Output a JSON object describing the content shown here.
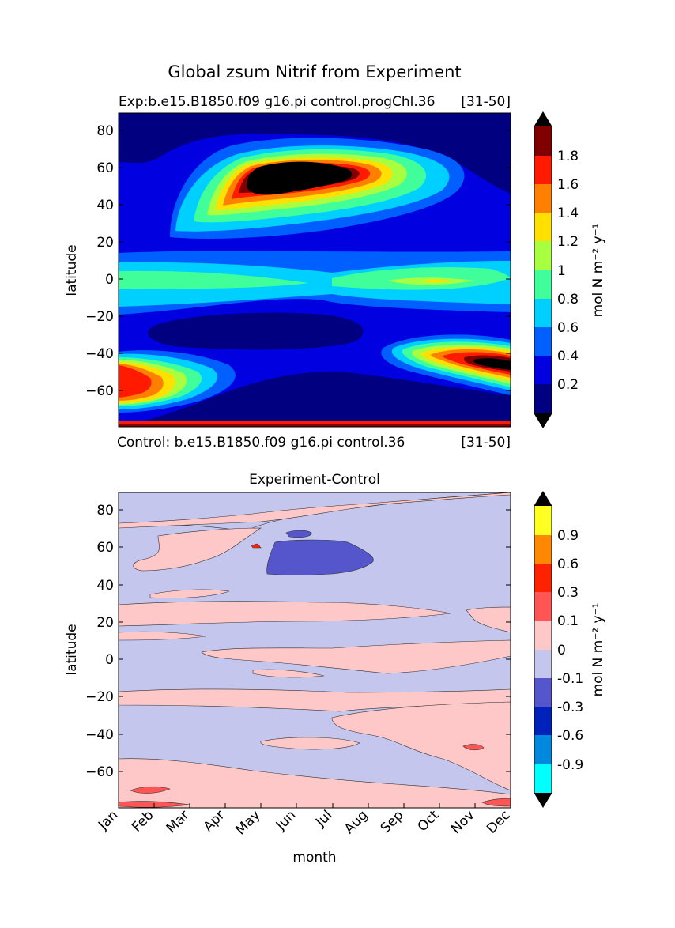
{
  "figure": {
    "suptitle": "Global zsum Nitrif from Experiment"
  },
  "chart_data": [
    {
      "type": "heatmap",
      "title_left": "Exp:b.e15.B1850.f09 g16.pi control.progChl.36",
      "title_right": "[31-50]",
      "footer_left": "Control: b.e15.B1850.f09 g16.pi control.36",
      "footer_right": "[31-50]",
      "ylabel": "latitude",
      "ylim": [
        -79,
        90
      ],
      "yticks": [
        "80",
        "60",
        "40",
        "20",
        "0",
        "−20",
        "−40",
        "−60"
      ],
      "ytick_values": [
        80,
        60,
        40,
        20,
        0,
        -20,
        -40,
        -60
      ],
      "colorbar": {
        "label": "mol N m⁻² y⁻¹",
        "levels": [
          0,
          0.2,
          0.4,
          0.6,
          0.8,
          1.0,
          1.2,
          1.4,
          1.6,
          1.8,
          2.0
        ],
        "tick_labels": [
          "0.2",
          "0.4",
          "0.6",
          "0.8",
          "1",
          "1.2",
          "1.4",
          "1.6",
          "1.8"
        ],
        "colors": [
          "#000080",
          "#0000e0",
          "#0060ff",
          "#00d0ff",
          "#40ff9a",
          "#a8ff40",
          "#ffe000",
          "#ff8000",
          "#ff1a00",
          "#800000"
        ],
        "under_color": "#000000",
        "over_color": "#000000",
        "extend": "both"
      }
    },
    {
      "type": "heatmap",
      "title": "Experiment-Control",
      "xlabel": "month",
      "ylabel": "latitude",
      "xticks": [
        "Jan",
        "Feb",
        "Mar",
        "Apr",
        "May",
        "Jun",
        "Jul",
        "Aug",
        "Sep",
        "Oct",
        "Nov",
        "Dec"
      ],
      "ylim": [
        -79,
        90
      ],
      "yticks": [
        "80",
        "60",
        "40",
        "20",
        "0",
        "−20",
        "−40",
        "−60"
      ],
      "ytick_values": [
        80,
        60,
        40,
        20,
        0,
        -20,
        -40,
        -60
      ],
      "colorbar": {
        "label": "mol N m⁻² y⁻¹",
        "tick_labels": [
          "0.9",
          "0.6",
          "0.3",
          "0.1",
          "0",
          "-0.1",
          "-0.3",
          "-0.6",
          "-0.9"
        ],
        "colors_top_to_bottom": [
          "#ffff22",
          "#ff8800",
          "#ff2200",
          "#ff5555",
          "#ffc8c8",
          "#c4c6ee",
          "#5555cc",
          "#0022bb",
          "#0088dd",
          "#00ffff"
        ],
        "over_color": "#000000",
        "under_color": "#000000",
        "extend": "both"
      }
    }
  ]
}
